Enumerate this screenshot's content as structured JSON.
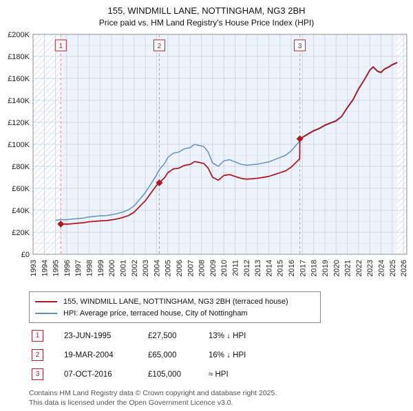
{
  "title": "155, WINDMILL LANE, NOTTINGHAM, NG3 2BH",
  "subtitle": "Price paid vs. HM Land Registry's House Price Index (HPI)",
  "chart_data": {
    "type": "line",
    "xlim": [
      1993,
      2026.3
    ],
    "ylim": [
      0,
      200000
    ],
    "y_major_step": 20000,
    "y_minor_step": 10000,
    "y_ticks": [
      "£0",
      "£20K",
      "£40K",
      "£60K",
      "£80K",
      "£100K",
      "£120K",
      "£140K",
      "£160K",
      "£180K",
      "£200K"
    ],
    "x_years": [
      1993,
      1994,
      1995,
      1996,
      1997,
      1998,
      1999,
      2000,
      2001,
      2002,
      2003,
      2004,
      2005,
      2006,
      2007,
      2008,
      2009,
      2010,
      2011,
      2012,
      2013,
      2014,
      2015,
      2016,
      2017,
      2018,
      2019,
      2020,
      2021,
      2022,
      2023,
      2024,
      2025,
      2026
    ],
    "shaded_region": [
      1995.47,
      2025.45
    ],
    "hatch_regions": [
      [
        1993,
        1995.47
      ],
      [
        2025.45,
        2026.3
      ]
    ],
    "colors": {
      "red": "#b01722",
      "blue": "#6290c3",
      "shade": "#edf3fb",
      "grid_major": "#d0d7e2",
      "grid_minor": "#e4e9f1",
      "vline": "#dd8fa0",
      "box_border": "#b02030",
      "hatch": "#c4c9d2",
      "border": "#8a8f98"
    },
    "series": [
      {
        "id": "price-paid",
        "name": "155, WINDMILL LANE, NOTTINGHAM, NG3 2BH (terraced house)",
        "color": "#b01722",
        "width": 1.8,
        "x": [
          1995.47,
          1996,
          1996.5,
          1997,
          1997.5,
          1998,
          1998.5,
          1999,
          1999.5,
          2000,
          2000.5,
          2001,
          2001.5,
          2002,
          2002.5,
          2003,
          2003.5,
          2004,
          2004.25,
          2004.75,
          2005,
          2005.5,
          2006,
          2006.5,
          2007,
          2007.4,
          2007.8,
          2008.2,
          2008.6,
          2009,
          2009.5,
          2010,
          2010.5,
          2011,
          2011.5,
          2012,
          2012.5,
          2013,
          2013.5,
          2014,
          2014.5,
          2015,
          2015.5,
          2016,
          2016.5,
          2016.76,
          2016.77,
          2017,
          2017.5,
          2018,
          2018.5,
          2019,
          2019.5,
          2020,
          2020.5,
          2021,
          2021.5,
          2022,
          2022.5,
          2023,
          2023.3,
          2023.7,
          2024,
          2024.3,
          2024.7,
          2025,
          2025.45
        ],
        "y": [
          27500,
          27400,
          27800,
          28300,
          28700,
          29600,
          30000,
          30450,
          30600,
          31300,
          32200,
          33500,
          35200,
          38300,
          43500,
          48700,
          55700,
          62600,
          65000,
          70000,
          74200,
          77600,
          78400,
          80900,
          81800,
          84300,
          83500,
          82600,
          78400,
          70000,
          67400,
          71700,
          72500,
          70800,
          69100,
          68300,
          68700,
          69100,
          70000,
          70800,
          72500,
          74200,
          75900,
          79200,
          84300,
          86800,
          105000,
          106500,
          109500,
          112500,
          114500,
          117500,
          119500,
          121500,
          125500,
          133500,
          140500,
          150500,
          158500,
          167500,
          170500,
          166500,
          165500,
          168500,
          170500,
          172500,
          174500
        ]
      },
      {
        "id": "hpi",
        "name": "HPI: Average price, terraced house, City of Nottingham",
        "color": "#6290c3",
        "width": 1.5,
        "x": [
          1995.0,
          1995.5,
          1996,
          1996.5,
          1997,
          1997.5,
          1998,
          1998.5,
          1999,
          1999.5,
          2000,
          2000.5,
          2001,
          2001.5,
          2002,
          2002.5,
          2003,
          2003.5,
          2004,
          2004.25,
          2004.75,
          2005,
          2005.5,
          2006,
          2006.5,
          2007,
          2007.4,
          2007.8,
          2008.2,
          2008.6,
          2009,
          2009.5,
          2010,
          2010.5,
          2011,
          2011.5,
          2012,
          2012.5,
          2013,
          2013.5,
          2014,
          2014.5,
          2015,
          2015.5,
          2016,
          2016.5,
          2016.77,
          2017,
          2017.5,
          2018,
          2018.5,
          2019,
          2019.5,
          2020,
          2020.5,
          2021,
          2021.5,
          2022,
          2022.5,
          2023,
          2023.3,
          2023.7,
          2024,
          2024.3,
          2024.7,
          2025,
          2025.45
        ],
        "y": [
          31000,
          31500,
          31500,
          32000,
          32500,
          33000,
          34000,
          34500,
          35000,
          35200,
          36000,
          37000,
          38500,
          40500,
          44000,
          50000,
          56000,
          64000,
          72000,
          77000,
          83000,
          88000,
          92000,
          93000,
          96000,
          97000,
          100000,
          99000,
          98000,
          93000,
          83000,
          80000,
          85000,
          86000,
          84000,
          82000,
          81000,
          81500,
          82000,
          83000,
          84000,
          86000,
          88000,
          90000,
          94000,
          100000,
          103000,
          106000,
          109000,
          112000,
          114000,
          117000,
          119000,
          121000,
          125000,
          133000,
          140000,
          150000,
          158000,
          167000,
          170000,
          166000,
          165000,
          168000,
          170000,
          172000,
          174000
        ]
      }
    ],
    "sales": [
      {
        "label": "1",
        "x": 1995.47,
        "y": 27500
      },
      {
        "label": "2",
        "x": 2004.25,
        "y": 65000
      },
      {
        "label": "3",
        "x": 2016.77,
        "y": 105000
      }
    ]
  },
  "legend": {
    "items": [
      {
        "label": "155, WINDMILL LANE, NOTTINGHAM, NG3 2BH (terraced house)",
        "color": "#b01722"
      },
      {
        "label": "HPI: Average price, terraced house, City of Nottingham",
        "color": "#6290c3"
      }
    ]
  },
  "transactions": [
    {
      "num": "1",
      "date": "23-JUN-1995",
      "price": "£27,500",
      "hpi": "13% ↓ HPI"
    },
    {
      "num": "2",
      "date": "19-MAR-2004",
      "price": "£65,000",
      "hpi": "16% ↓ HPI"
    },
    {
      "num": "3",
      "date": "07-OCT-2016",
      "price": "£105,000",
      "hpi": "≈ HPI"
    }
  ],
  "footer": {
    "line1": "Contains HM Land Registry data © Crown copyright and database right 2025.",
    "line2": "This data is licensed under the Open Government Licence v3.0."
  }
}
